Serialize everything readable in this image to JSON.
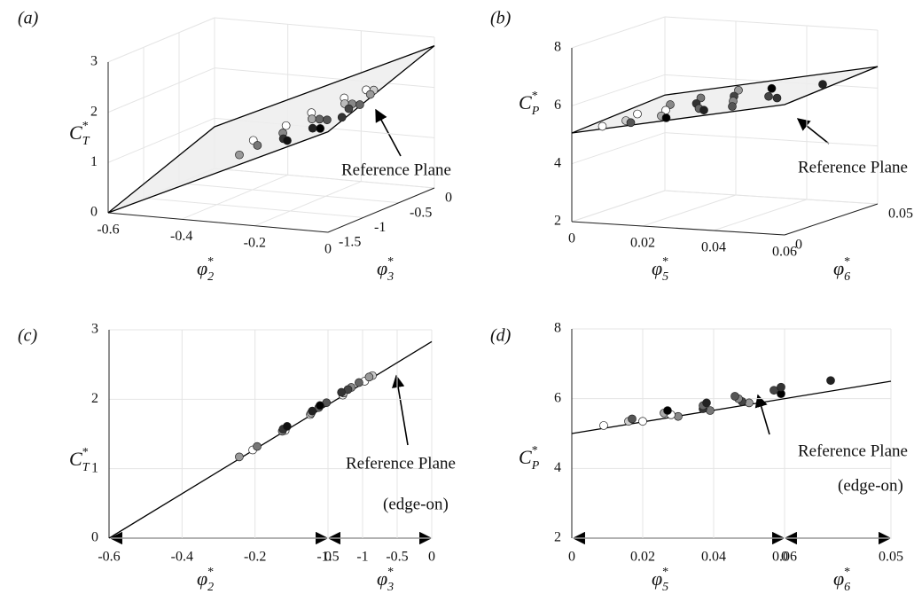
{
  "chart_data": [
    {
      "type": "scatter3d",
      "label": "(a)",
      "xlabel": {
        "base": "φ",
        "sub": "2",
        "sup": "*"
      },
      "ylabel": {
        "base": "φ",
        "sub": "3",
        "sup": "*"
      },
      "zlabel": {
        "base": "C",
        "sub": "T",
        "sup": "*"
      },
      "xlim": [
        -0.6,
        0
      ],
      "xticks": [
        -0.6,
        -0.4,
        -0.2,
        0
      ],
      "ylim": [
        -1.5,
        0
      ],
      "yticks": [
        -1.5,
        -1,
        -0.5,
        0
      ],
      "zlim": [
        0,
        3
      ],
      "zticks": [
        0,
        1,
        2,
        3
      ],
      "grid": true,
      "points": {
        "x": [
          -0.32,
          -0.3,
          -0.27,
          -0.25,
          -0.22,
          -0.2,
          -0.18,
          -0.16,
          -0.15,
          -0.13,
          -0.12,
          -0.1,
          -0.09,
          -0.08,
          -0.07,
          -0.06,
          -0.05,
          -0.04,
          -0.03,
          -0.02,
          -0.02,
          -0.01
        ],
        "y": [
          -0.9,
          -1.2,
          -1.1,
          -0.8,
          -1.0,
          -0.7,
          -1.2,
          -0.9,
          -1.3,
          -0.6,
          -1.0,
          -1.2,
          -0.8,
          -1.1,
          -0.6,
          -1.3,
          -0.9,
          -1.0,
          -0.7,
          -1.2,
          -0.8,
          -1.0
        ],
        "z": [
          1.27,
          1.17,
          1.32,
          1.55,
          1.54,
          1.78,
          1.57,
          1.8,
          1.61,
          2.06,
          1.88,
          1.83,
          2.09,
          1.95,
          2.26,
          1.91,
          2.17,
          2.14,
          2.34,
          2.1,
          2.32,
          2.24
        ],
        "colors": [
          "#ffffff",
          "#999999",
          "#777777",
          "#ffffff",
          "#888888",
          "#ffffff",
          "#333333",
          "#aaaaaa",
          "#111111",
          "#ffffff",
          "#666666",
          "#222222",
          "#bbbbbb",
          "#555555",
          "#ffffff",
          "#000000",
          "#888888",
          "#444444",
          "#cccccc",
          "#333333",
          "#999999",
          "#666666"
        ]
      },
      "reference_plane": [
        [
          -0.6,
          -1.5,
          0
        ],
        [
          -0.6,
          0,
          0.83
        ],
        [
          0,
          0,
          2.83
        ],
        [
          0,
          -1.5,
          2.0
        ]
      ],
      "annotations": [
        "Reference Plane"
      ]
    },
    {
      "type": "scatter3d",
      "label": "(b)",
      "xlabel": {
        "base": "φ",
        "sub": "5",
        "sup": "*"
      },
      "ylabel": {
        "base": "φ",
        "sub": "6",
        "sup": "*"
      },
      "zlabel": {
        "base": "C",
        "sub": "P",
        "sup": "*"
      },
      "xlim": [
        0,
        0.06
      ],
      "xticks": [
        0,
        0.02,
        0.04,
        0.06
      ],
      "ylim": [
        0,
        0.05
      ],
      "yticks": [
        0,
        0.05
      ],
      "zlim": [
        2,
        8
      ],
      "zticks": [
        2,
        4,
        6,
        8
      ],
      "grid": true,
      "points": {
        "x": [
          0.006,
          0.008,
          0.01,
          0.012,
          0.014,
          0.016,
          0.018,
          0.02,
          0.022,
          0.024,
          0.026,
          0.028,
          0.03,
          0.032,
          0.035,
          0.038,
          0.04,
          0.045,
          0.05,
          0.055
        ],
        "y": [
          0.005,
          0.02,
          0.01,
          0.03,
          0.005,
          0.02,
          0.035,
          0.01,
          0.025,
          0.005,
          0.04,
          0.015,
          0.03,
          0.01,
          0.02,
          0.035,
          0.01,
          0.02,
          0.015,
          0.03
        ],
        "z": [
          5.23,
          5.35,
          5.35,
          5.49,
          5.42,
          5.54,
          5.66,
          5.59,
          5.71,
          5.66,
          5.88,
          5.8,
          5.92,
          5.88,
          6.0,
          6.14,
          6.07,
          6.24,
          6.33,
          6.52
        ],
        "colors": [
          "#ffffff",
          "#ffffff",
          "#cccccc",
          "#888888",
          "#555555",
          "#ffffff",
          "#777777",
          "#aaaaaa",
          "#333333",
          "#000000",
          "#999999",
          "#666666",
          "#444444",
          "#222222",
          "#888888",
          "#000000",
          "#555555",
          "#444444",
          "#333333",
          "#222222"
        ]
      },
      "reference_plane": [
        [
          0,
          0,
          5.06
        ],
        [
          0,
          0.05,
          5.3
        ],
        [
          0.06,
          0.05,
          6.74
        ],
        [
          0.06,
          0,
          6.5
        ]
      ],
      "annotations": [
        "Reference Plane"
      ]
    },
    {
      "type": "scatter_edge",
      "label": "(c)",
      "xlabel": {
        "base": "φ",
        "sub": "2",
        "sup": "*"
      },
      "ylabel": {
        "base": "φ",
        "sub": "3",
        "sup": "*"
      },
      "zlabel": {
        "base": "C",
        "sub": "T",
        "sup": "*"
      },
      "xlim": [
        -0.6,
        0
      ],
      "xticks": [
        -0.6,
        -0.4,
        -0.2,
        0
      ],
      "ylim": [
        -1.5,
        0
      ],
      "yticks": [
        -1.5,
        -1,
        -0.5,
        0
      ],
      "zlim": [
        0,
        3
      ],
      "zticks": [
        0,
        1,
        2,
        3
      ],
      "grid": true,
      "points": {
        "x": [
          -0.32,
          -0.3,
          -0.27,
          -0.25,
          -0.22,
          -0.2,
          -0.18,
          -0.16,
          -0.15,
          -0.13,
          -0.12,
          -0.1,
          -0.09,
          -0.08,
          -0.07,
          -0.06,
          -0.05,
          -0.04,
          -0.03,
          -0.02,
          -0.02,
          -0.01
        ],
        "y": [
          -0.9,
          -1.2,
          -1.1,
          -0.8,
          -1.0,
          -0.7,
          -1.2,
          -0.9,
          -1.3,
          -0.6,
          -1.0,
          -1.2,
          -0.8,
          -1.1,
          -0.6,
          -1.3,
          -0.9,
          -1.0,
          -0.7,
          -1.2,
          -0.8,
          -1.0
        ],
        "z": [
          1.27,
          1.17,
          1.32,
          1.55,
          1.54,
          1.78,
          1.57,
          1.8,
          1.61,
          2.06,
          1.88,
          1.83,
          2.09,
          1.95,
          2.26,
          1.91,
          2.17,
          2.14,
          2.34,
          2.1,
          2.32,
          2.24
        ],
        "colors": [
          "#ffffff",
          "#999999",
          "#777777",
          "#ffffff",
          "#888888",
          "#ffffff",
          "#333333",
          "#aaaaaa",
          "#111111",
          "#ffffff",
          "#666666",
          "#222222",
          "#bbbbbb",
          "#555555",
          "#ffffff",
          "#000000",
          "#888888",
          "#444444",
          "#cccccc",
          "#333333",
          "#999999",
          "#666666"
        ]
      },
      "reference_plane": [
        [
          -0.6,
          -1.5,
          0
        ],
        [
          0,
          0,
          2.83
        ]
      ],
      "annotations": [
        "Reference Plane",
        "(edge-on)"
      ]
    },
    {
      "type": "scatter_edge",
      "label": "(d)",
      "xlabel": {
        "base": "φ",
        "sub": "5",
        "sup": "*"
      },
      "ylabel": {
        "base": "φ",
        "sub": "6",
        "sup": "*"
      },
      "zlabel": {
        "base": "C",
        "sub": "P",
        "sup": "*"
      },
      "xlim": [
        0,
        0.06
      ],
      "xticks": [
        0,
        0.02,
        0.04,
        0.06
      ],
      "ylim": [
        0,
        0.05
      ],
      "yticks": [
        0,
        0.05
      ],
      "zlim": [
        2,
        8
      ],
      "zticks": [
        2,
        4,
        6,
        8
      ],
      "grid": true,
      "points": {
        "x": [
          0.006,
          0.008,
          0.01,
          0.012,
          0.014,
          0.016,
          0.018,
          0.02,
          0.022,
          0.024,
          0.026,
          0.028,
          0.03,
          0.032,
          0.035,
          0.038,
          0.04,
          0.045,
          0.05,
          0.055
        ],
        "y": [
          0.005,
          0.02,
          0.01,
          0.03,
          0.005,
          0.02,
          0.035,
          0.01,
          0.025,
          0.005,
          0.04,
          0.015,
          0.03,
          0.01,
          0.02,
          0.035,
          0.01,
          0.02,
          0.015,
          0.03
        ],
        "z": [
          5.23,
          5.35,
          5.35,
          5.49,
          5.42,
          5.54,
          5.66,
          5.59,
          5.71,
          5.66,
          5.88,
          5.8,
          5.92,
          5.88,
          6.0,
          6.14,
          6.07,
          6.24,
          6.33,
          6.52
        ],
        "colors": [
          "#ffffff",
          "#ffffff",
          "#cccccc",
          "#888888",
          "#555555",
          "#ffffff",
          "#777777",
          "#aaaaaa",
          "#333333",
          "#000000",
          "#999999",
          "#666666",
          "#444444",
          "#222222",
          "#888888",
          "#000000",
          "#555555",
          "#444444",
          "#333333",
          "#222222"
        ]
      },
      "reference_plane": [
        [
          0,
          0,
          5.0
        ],
        [
          0.06,
          0.05,
          6.5
        ]
      ],
      "annotations": [
        "Reference Plane",
        "(edge-on)"
      ]
    }
  ]
}
